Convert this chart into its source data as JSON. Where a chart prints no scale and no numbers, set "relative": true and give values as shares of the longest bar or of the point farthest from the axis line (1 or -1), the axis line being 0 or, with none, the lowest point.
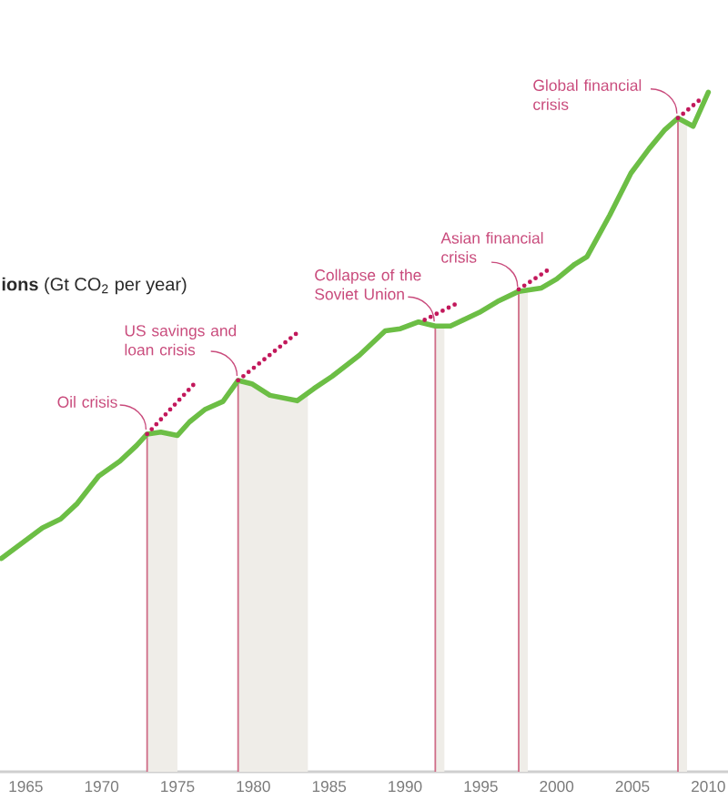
{
  "chart_data": {
    "type": "line",
    "title": "**ions** (Gt CO$_{2}$ per year)",
    "relative": true,
    "xlim": [
      1963.3,
      2011.3
    ],
    "xticks": [
      1965,
      1970,
      1975,
      1980,
      1985,
      1990,
      1995,
      2000,
      2005,
      2010
    ],
    "series": [
      {
        "color": "#6cbe45",
        "x": [
          1963.4,
          1966.1,
          1967.3,
          1968.4,
          1969.8,
          1971.2,
          1972.3,
          1973,
          1973.9,
          1975,
          1975.8,
          1976.8,
          1978,
          1979,
          1979.9,
          1981.1,
          1982.9,
          1984,
          1985.2,
          1987,
          1988.7,
          1989.7,
          1990.9,
          1992,
          1993,
          1994.9,
          1996.1,
          1997.5,
          1999,
          2000,
          2001.2,
          2002,
          2003.5,
          2004.9,
          2006.1,
          2007.1,
          2008,
          2009,
          2010
        ],
        "values": [
          0.314,
          0.359,
          0.372,
          0.395,
          0.435,
          0.457,
          0.48,
          0.497,
          0.5,
          0.495,
          0.515,
          0.533,
          0.545,
          0.576,
          0.571,
          0.554,
          0.546,
          0.564,
          0.582,
          0.613,
          0.649,
          0.652,
          0.662,
          0.656,
          0.656,
          0.676,
          0.692,
          0.707,
          0.712,
          0.725,
          0.747,
          0.758,
          0.819,
          0.881,
          0.917,
          0.944,
          0.962,
          0.95,
          1.0
        ]
      },
      {
        "type": "line",
        "color": "#c2185b",
        "line_style": "dotted",
        "x": [
          1973,
          1976.2
        ],
        "values": [
          0.497,
          0.573
        ]
      },
      {
        "type": "line",
        "color": "#c2185b",
        "line_style": "dotted",
        "x": [
          1979,
          1982.9
        ],
        "values": [
          0.576,
          0.646
        ]
      },
      {
        "type": "line",
        "color": "#c2185b",
        "line_style": "dotted",
        "x": [
          1991.3,
          1993.4
        ],
        "values": [
          0.665,
          0.689
        ]
      },
      {
        "type": "line",
        "color": "#c2185b",
        "line_style": "dotted",
        "x": [
          1997.5,
          1999.6
        ],
        "values": [
          0.71,
          0.741
        ]
      },
      {
        "type": "line",
        "color": "#c2185b",
        "line_style": "dotted",
        "x": [
          2008,
          2009.5
        ],
        "values": [
          0.962,
          0.99
        ]
      }
    ],
    "ref_lines": [
      {
        "axis": "x",
        "value": 1973,
        "color": "#cf6d88"
      },
      {
        "axis": "x",
        "value": 1979,
        "color": "#cf6d88"
      },
      {
        "axis": "x",
        "value": 1992,
        "color": "#cf6d88"
      },
      {
        "axis": "x",
        "value": 1997.5,
        "color": "#cf6d88"
      },
      {
        "axis": "x",
        "value": 2008,
        "color": "#cf6d88"
      }
    ],
    "bands": [
      {
        "axis": "x",
        "from": 1973,
        "to": 1975,
        "color": "#efede8"
      },
      {
        "axis": "x",
        "from": 1979,
        "to": 1983.6,
        "color": "#efede8"
      },
      {
        "axis": "x",
        "from": 1992,
        "to": 1992.6,
        "color": "#efede8"
      },
      {
        "axis": "x",
        "from": 1997.5,
        "to": 1998.1,
        "color": "#efede8"
      },
      {
        "axis": "x",
        "from": 2008,
        "to": 2008.6,
        "color": "#efede8"
      }
    ],
    "annotations": [
      {
        "text": "Oil crisis",
        "x": 1973,
        "y": 0.497
      },
      {
        "text": "US savings and loan crisis",
        "x": 1979,
        "y": 0.576
      },
      {
        "text": "Collapse of the Soviet Union",
        "x": 1992,
        "y": 0.656
      },
      {
        "text": "Asian financial crisis",
        "x": 1997.5,
        "y": 0.707
      },
      {
        "text": "Global financial crisis",
        "x": 2008,
        "y": 0.962
      }
    ]
  }
}
